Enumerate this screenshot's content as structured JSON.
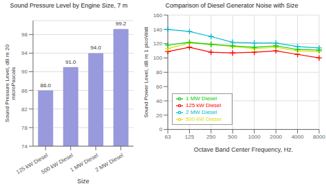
{
  "chart_data": [
    {
      "type": "bar",
      "title": "Sound Pressure Level by Engine Size, 7 m",
      "x_label": "Size",
      "y_label": "Sound Pressure Level, dB re 20\nmicroPascals",
      "categories": [
        "125 kW Diesel",
        "500 kW Diesel",
        "1 MW Diesel",
        "2 MW Diesel"
      ],
      "values": [
        86.0,
        91.0,
        94.0,
        99.2
      ],
      "value_labels": [
        "86.0",
        "91.0",
        "94.0",
        "99.2"
      ],
      "color": "#9999DD",
      "ylim": [
        74,
        101
      ],
      "yticks": [
        74,
        78,
        82,
        86,
        90,
        94,
        98
      ],
      "grid": "y",
      "data_labels": true
    },
    {
      "type": "line",
      "title": "Comparison of Diesel Generator Noise with Size",
      "x_label": "Octave Band Center Frequency, Hz.",
      "y_label": "Sound Power Level, dB re 1 picoWatt",
      "categories": [
        "63",
        "125",
        "250",
        "500",
        "1000",
        "2000",
        "4000",
        "8000"
      ],
      "series": [
        {
          "name": "125 kW Diesel",
          "color": "#FF0000",
          "marker": "+",
          "values": [
            109,
            115,
            108,
            107,
            108,
            110,
            105,
            100
          ]
        },
        {
          "name": "500 kW Diesel",
          "color": "#DDDD00",
          "marker": "+",
          "values": [
            113,
            121,
            119,
            116,
            113,
            115,
            110,
            109
          ]
        },
        {
          "name": "1 MW Diesel",
          "color": "#00CC00",
          "marker": "+",
          "values": [
            118,
            122,
            119,
            117,
            115,
            117,
            112,
            111
          ]
        },
        {
          "name": "2 MW Diesel",
          "color": "#00BBCC",
          "marker": "+",
          "values": [
            140,
            137,
            130,
            122,
            121,
            121,
            116,
            114
          ]
        }
      ],
      "ylim": [
        0,
        160
      ],
      "yticks": [
        0,
        20,
        40,
        60,
        80,
        100,
        120,
        140,
        160
      ],
      "grid": true,
      "legend": "lower left"
    }
  ]
}
